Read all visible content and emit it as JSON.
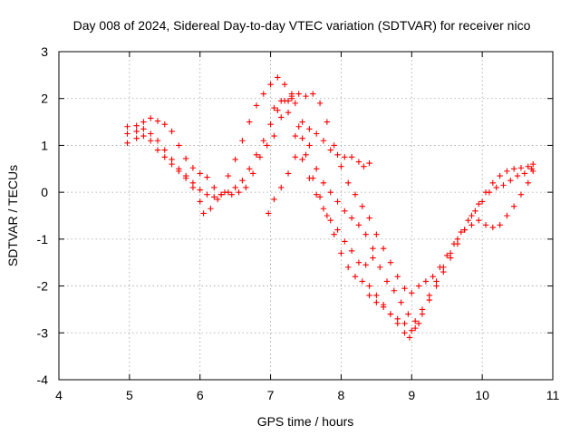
{
  "chart_data": {
    "type": "scatter",
    "title": "Day 008 of 2024, Sidereal Day-to-day VTEC variation (SDTVAR) for receiver nico",
    "xlabel": "GPS time / hours",
    "ylabel": "SDTVAR / TECUs",
    "xlim": [
      4,
      11
    ],
    "ylim": [
      -4,
      3
    ],
    "xticks": [
      4,
      5,
      6,
      7,
      8,
      9,
      10,
      11
    ],
    "yticks": [
      -4,
      -3,
      -2,
      -1,
      0,
      1,
      2,
      3
    ],
    "grid": true,
    "marker": "plus",
    "color": "#ff0000",
    "series": [
      {
        "points": [
          [
            4.97,
            1.4
          ],
          [
            5.1,
            1.42
          ],
          [
            5.2,
            1.5
          ],
          [
            5.3,
            1.58
          ],
          [
            5.4,
            1.52
          ],
          [
            5.5,
            1.45
          ],
          [
            5.6,
            1.3
          ],
          [
            5.7,
            1.0
          ],
          [
            5.8,
            0.72
          ],
          [
            5.9,
            0.52
          ],
          [
            6.0,
            0.4
          ],
          [
            6.1,
            0.32
          ],
          [
            6.2,
            0.1
          ],
          [
            6.3,
            -0.05
          ],
          [
            6.4,
            0.35
          ],
          [
            6.5,
            0.7
          ],
          [
            6.6,
            1.1
          ],
          [
            6.7,
            1.5
          ],
          [
            6.8,
            1.85
          ],
          [
            6.9,
            2.1
          ],
          [
            7.0,
            2.3
          ],
          [
            7.1,
            2.45
          ],
          [
            7.2,
            2.3
          ],
          [
            7.3,
            2.0
          ],
          [
            7.4,
            1.4
          ],
          [
            7.5,
            0.8
          ],
          [
            7.6,
            0.3
          ],
          [
            7.7,
            -0.1
          ],
          [
            7.8,
            -0.5
          ],
          [
            7.9,
            -0.9
          ],
          [
            8.0,
            -1.3
          ],
          [
            8.1,
            -1.6
          ],
          [
            8.2,
            -1.8
          ],
          [
            8.3,
            -1.9
          ],
          [
            8.4,
            -2.0
          ],
          [
            8.5,
            -2.2
          ],
          [
            8.6,
            -2.4
          ],
          [
            8.7,
            -2.6
          ],
          [
            8.8,
            -2.8
          ],
          [
            8.9,
            -3.0
          ],
          [
            8.97,
            -3.1
          ],
          [
            9.05,
            -2.9
          ],
          [
            9.15,
            -2.6
          ],
          [
            9.25,
            -2.3
          ],
          [
            9.35,
            -2.0
          ],
          [
            9.45,
            -1.7
          ],
          [
            9.55,
            -1.4
          ],
          [
            9.65,
            -1.1
          ],
          [
            9.75,
            -0.8
          ],
          [
            9.85,
            -0.5
          ],
          [
            9.95,
            -0.25
          ],
          [
            10.05,
            0.0
          ],
          [
            10.15,
            0.2
          ],
          [
            10.25,
            0.35
          ],
          [
            10.35,
            0.45
          ],
          [
            10.45,
            0.5
          ],
          [
            10.55,
            0.52
          ],
          [
            10.65,
            0.55
          ],
          [
            10.72,
            0.6
          ]
        ]
      },
      {
        "points": [
          [
            4.97,
            1.05
          ],
          [
            5.1,
            1.15
          ],
          [
            5.2,
            1.2
          ],
          [
            5.3,
            1.1
          ],
          [
            5.4,
            0.9
          ],
          [
            5.5,
            0.75
          ],
          [
            5.6,
            0.6
          ],
          [
            5.7,
            0.45
          ],
          [
            5.8,
            0.3
          ],
          [
            5.9,
            0.1
          ],
          [
            6.0,
            -0.2
          ],
          [
            6.05,
            -0.45
          ],
          [
            6.15,
            -0.35
          ],
          [
            6.25,
            -0.15
          ],
          [
            6.35,
            0.0
          ],
          [
            6.45,
            -0.05
          ],
          [
            6.55,
            0.0
          ],
          [
            6.65,
            0.1
          ],
          [
            6.75,
            0.4
          ],
          [
            6.85,
            0.75
          ],
          [
            6.95,
            1.0
          ],
          [
            7.05,
            1.2
          ],
          [
            7.15,
            1.6
          ],
          [
            7.25,
            1.95
          ],
          [
            7.3,
            2.1
          ],
          [
            7.35,
            1.9
          ],
          [
            7.45,
            1.5
          ],
          [
            7.55,
            1.0
          ],
          [
            7.65,
            0.5
          ],
          [
            7.75,
            0.2
          ],
          [
            7.85,
            0.0
          ],
          [
            7.95,
            -0.2
          ],
          [
            8.05,
            -0.4
          ],
          [
            8.15,
            -0.55
          ],
          [
            8.25,
            -0.7
          ],
          [
            8.35,
            -0.9
          ],
          [
            8.45,
            -1.2
          ],
          [
            8.55,
            -1.6
          ],
          [
            8.65,
            -1.9
          ],
          [
            8.75,
            -2.1
          ],
          [
            8.85,
            -2.35
          ],
          [
            8.95,
            -2.6
          ],
          [
            9.05,
            -2.75
          ],
          [
            9.15,
            -2.5
          ],
          [
            9.25,
            -2.2
          ],
          [
            9.35,
            -1.9
          ],
          [
            9.45,
            -1.6
          ],
          [
            9.55,
            -1.3
          ],
          [
            9.65,
            -1.0
          ],
          [
            9.75,
            -0.8
          ],
          [
            9.85,
            -0.7
          ],
          [
            9.95,
            -0.6
          ],
          [
            10.05,
            -0.7
          ],
          [
            10.15,
            -0.75
          ],
          [
            10.25,
            -0.7
          ],
          [
            10.35,
            -0.5
          ],
          [
            10.45,
            -0.3
          ],
          [
            10.55,
            -0.05
          ],
          [
            10.65,
            0.2
          ],
          [
            10.72,
            0.45
          ]
        ]
      },
      {
        "points": [
          [
            4.97,
            1.25
          ],
          [
            5.1,
            1.3
          ],
          [
            5.2,
            1.35
          ],
          [
            5.3,
            1.25
          ],
          [
            5.4,
            1.1
          ],
          [
            5.5,
            0.9
          ],
          [
            5.6,
            0.7
          ],
          [
            5.7,
            0.5
          ],
          [
            5.8,
            0.35
          ],
          [
            5.9,
            0.2
          ],
          [
            6.0,
            0.05
          ],
          [
            6.1,
            -0.05
          ],
          [
            6.2,
            -0.1
          ],
          [
            6.3,
            -0.05
          ],
          [
            6.4,
            0.0
          ],
          [
            6.5,
            0.1
          ],
          [
            6.6,
            0.25
          ],
          [
            6.7,
            0.5
          ],
          [
            6.8,
            0.8
          ],
          [
            6.9,
            1.1
          ],
          [
            7.0,
            1.45
          ],
          [
            7.1,
            1.75
          ],
          [
            7.2,
            1.95
          ],
          [
            7.3,
            2.05
          ],
          [
            7.4,
            2.1
          ],
          [
            7.5,
            2.05
          ],
          [
            7.6,
            2.1
          ],
          [
            7.7,
            1.9
          ],
          [
            7.8,
            1.5
          ],
          [
            7.9,
            1.0
          ],
          [
            8.0,
            0.55
          ],
          [
            8.1,
            0.2
          ],
          [
            8.2,
            -0.05
          ],
          [
            8.3,
            -0.3
          ],
          [
            8.4,
            -0.55
          ],
          [
            8.5,
            -0.9
          ],
          [
            8.6,
            -1.2
          ],
          [
            8.7,
            -1.5
          ],
          [
            8.8,
            -1.8
          ],
          [
            8.9,
            -2.05
          ],
          [
            9.0,
            -2.15
          ],
          [
            9.1,
            -2.0
          ],
          [
            9.2,
            -1.9
          ],
          [
            9.3,
            -1.8
          ],
          [
            9.4,
            -1.6
          ],
          [
            9.5,
            -1.35
          ],
          [
            9.6,
            -1.1
          ],
          [
            9.7,
            -0.85
          ],
          [
            9.8,
            -0.6
          ],
          [
            9.9,
            -0.4
          ],
          [
            10.0,
            -0.2
          ],
          [
            10.1,
            0.0
          ],
          [
            10.2,
            0.1
          ],
          [
            10.3,
            0.15
          ],
          [
            10.4,
            0.25
          ],
          [
            10.5,
            0.35
          ],
          [
            10.6,
            0.4
          ],
          [
            10.7,
            0.5
          ]
        ]
      },
      {
        "points": [
          [
            6.97,
            -0.45
          ],
          [
            7.05,
            -0.15
          ],
          [
            7.15,
            0.1
          ],
          [
            7.25,
            0.4
          ],
          [
            7.35,
            0.75
          ],
          [
            7.45,
            1.15
          ],
          [
            7.55,
            1.35
          ],
          [
            7.65,
            1.25
          ],
          [
            7.75,
            1.1
          ],
          [
            7.85,
            0.9
          ],
          [
            7.95,
            0.8
          ],
          [
            8.05,
            0.75
          ],
          [
            8.15,
            0.75
          ],
          [
            8.25,
            0.65
          ],
          [
            8.32,
            0.55
          ],
          [
            8.4,
            0.62
          ]
        ]
      },
      {
        "points": [
          [
            7.05,
            1.8
          ],
          [
            7.15,
            1.95
          ],
          [
            7.25,
            1.7
          ],
          [
            7.35,
            1.2
          ],
          [
            7.45,
            0.7
          ],
          [
            7.55,
            0.3
          ],
          [
            7.65,
            -0.05
          ],
          [
            7.75,
            -0.35
          ],
          [
            7.85,
            -0.6
          ],
          [
            7.95,
            -0.8
          ],
          [
            8.05,
            -1.05
          ],
          [
            8.15,
            -1.25
          ],
          [
            8.25,
            -1.5
          ],
          [
            8.35,
            -1.55
          ],
          [
            8.45,
            -1.4
          ]
        ]
      },
      {
        "points": [
          [
            8.4,
            -2.2
          ],
          [
            8.5,
            -2.35
          ],
          [
            8.6,
            -2.45
          ],
          [
            8.7,
            -2.6
          ],
          [
            8.8,
            -2.7
          ],
          [
            8.9,
            -2.8
          ],
          [
            9.0,
            -2.95
          ],
          [
            9.1,
            -2.8
          ]
        ]
      }
    ]
  }
}
